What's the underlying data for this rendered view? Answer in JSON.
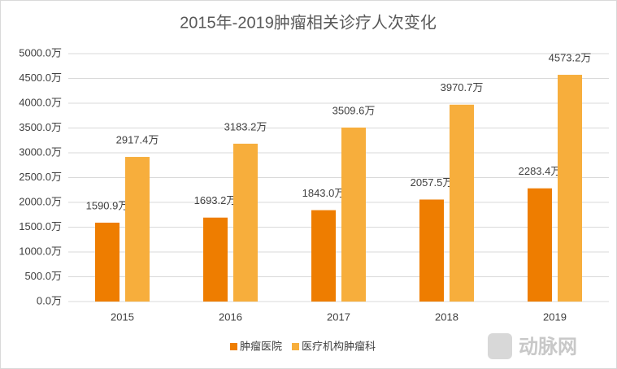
{
  "chart_data": {
    "type": "bar",
    "title": "2015年-2019肿瘤相关诊疗人次变化",
    "categories": [
      "2015",
      "2016",
      "2017",
      "2018",
      "2019"
    ],
    "series": [
      {
        "name": "肿瘤医院",
        "color": "#ee7d00",
        "values": [
          1590.9,
          1693.2,
          1843.0,
          2057.5,
          2283.4
        ],
        "value_labels": [
          "1590.9万",
          "1693.2万",
          "1843.0万",
          "2057.5万",
          "2283.4万"
        ]
      },
      {
        "name": "医疗机构肿瘤科",
        "color": "#f7ae3c",
        "values": [
          2917.4,
          3183.2,
          3509.6,
          3970.7,
          4573.2
        ],
        "value_labels": [
          "2917.4万",
          "3183.2万",
          "3509.6万",
          "3970.7万",
          "4573.2万"
        ]
      }
    ],
    "ylim": [
      0,
      5000
    ],
    "yticks": [
      {
        "value": 0,
        "label": "0.0万"
      },
      {
        "value": 500,
        "label": "500.0万"
      },
      {
        "value": 1000,
        "label": "1000.0万"
      },
      {
        "value": 1500,
        "label": "1500.0万"
      },
      {
        "value": 2000,
        "label": "2000.0万"
      },
      {
        "value": 2500,
        "label": "2500.0万"
      },
      {
        "value": 3000,
        "label": "3000.0万"
      },
      {
        "value": 3500,
        "label": "3500.0万"
      },
      {
        "value": 4000,
        "label": "4000.0万"
      },
      {
        "value": 4500,
        "label": "4500.0万"
      },
      {
        "value": 5000,
        "label": "5000.0万"
      }
    ],
    "grid": true,
    "legend": "bottom"
  },
  "watermark": "动脉网"
}
